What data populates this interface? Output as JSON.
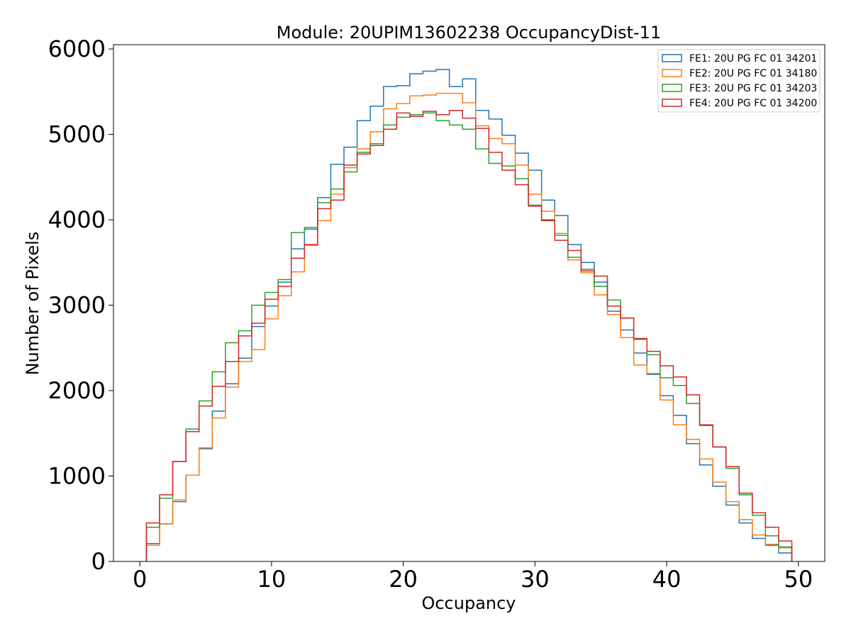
{
  "chart_data": {
    "type": "step",
    "title": "Module: 20UPIM13602238 OccupancyDist-11",
    "xlabel": "Occupancy",
    "ylabel": "Number of Pixels",
    "xlim": [
      -2,
      52
    ],
    "ylim": [
      0,
      6050
    ],
    "xticks": [
      0,
      10,
      20,
      30,
      40,
      50
    ],
    "yticks": [
      0,
      1000,
      2000,
      3000,
      4000,
      5000,
      6000
    ],
    "bin_edges": [
      0.5,
      1.5,
      2.5,
      3.5,
      4.5,
      5.5,
      6.5,
      7.5,
      8.5,
      9.5,
      10.5,
      11.5,
      12.5,
      13.5,
      14.5,
      15.5,
      16.5,
      17.5,
      18.5,
      19.5,
      20.5,
      21.5,
      22.5,
      23.5,
      24.5,
      25.5,
      26.5,
      27.5,
      28.5,
      29.5,
      30.5,
      31.5,
      32.5,
      33.5,
      34.5,
      35.5,
      36.5,
      37.5,
      38.5,
      39.5,
      40.5,
      41.5,
      42.5,
      43.5,
      44.5,
      45.5,
      46.5,
      47.5,
      48.5,
      49.5
    ],
    "legend_position": "top-right",
    "series": [
      {
        "name": "FE1: 20U PG FC 01 34201",
        "color": "#1f77b4",
        "values": [
          210,
          440,
          700,
          1010,
          1320,
          1760,
          2080,
          2380,
          2750,
          2990,
          3270,
          3660,
          3890,
          4260,
          4650,
          4850,
          5160,
          5330,
          5560,
          5570,
          5710,
          5740,
          5760,
          5560,
          5650,
          5280,
          5180,
          4990,
          4780,
          4580,
          4230,
          4050,
          3710,
          3500,
          3270,
          2930,
          2710,
          2440,
          2190,
          1940,
          1710,
          1380,
          1130,
          880,
          660,
          450,
          270,
          190,
          100
        ]
      },
      {
        "name": "FE2: 20U PG FC 01 34180",
        "color": "#ff7f0e",
        "values": [
          190,
          440,
          720,
          1010,
          1330,
          1680,
          2040,
          2340,
          2480,
          2840,
          3110,
          3390,
          3700,
          3990,
          4300,
          4610,
          4830,
          5030,
          5300,
          5360,
          5450,
          5460,
          5480,
          5480,
          5370,
          5100,
          4950,
          4890,
          4640,
          4300,
          4100,
          3840,
          3530,
          3380,
          3120,
          2890,
          2620,
          2300,
          2200,
          1890,
          1600,
          1430,
          1200,
          930,
          700,
          490,
          310,
          200,
          160
        ]
      },
      {
        "name": "FE3: 20U PG FC 01 34203",
        "color": "#2ca02c",
        "values": [
          400,
          740,
          1170,
          1550,
          1880,
          2220,
          2560,
          2700,
          3000,
          3150,
          3300,
          3850,
          3910,
          4200,
          4360,
          4560,
          4790,
          4890,
          5110,
          5200,
          5230,
          5250,
          5160,
          5110,
          5060,
          4830,
          4660,
          4630,
          4480,
          4170,
          4000,
          3820,
          3560,
          3420,
          3220,
          3060,
          2850,
          2600,
          2420,
          2150,
          2060,
          1850,
          1590,
          1340,
          1090,
          780,
          540,
          300,
          170
        ]
      },
      {
        "name": "FE4: 20U PG FC 01 34200",
        "color": "#d62728",
        "values": [
          450,
          780,
          1170,
          1520,
          1820,
          2050,
          2340,
          2640,
          2790,
          3070,
          3220,
          3550,
          3710,
          4130,
          4230,
          4640,
          4770,
          4870,
          5060,
          5250,
          5210,
          5270,
          5230,
          5280,
          5190,
          5070,
          4790,
          4580,
          4410,
          4160,
          3990,
          3760,
          3640,
          3400,
          3340,
          2990,
          2850,
          2610,
          2460,
          2290,
          2160,
          1950,
          1600,
          1340,
          1110,
          800,
          570,
          400,
          240
        ]
      }
    ]
  }
}
